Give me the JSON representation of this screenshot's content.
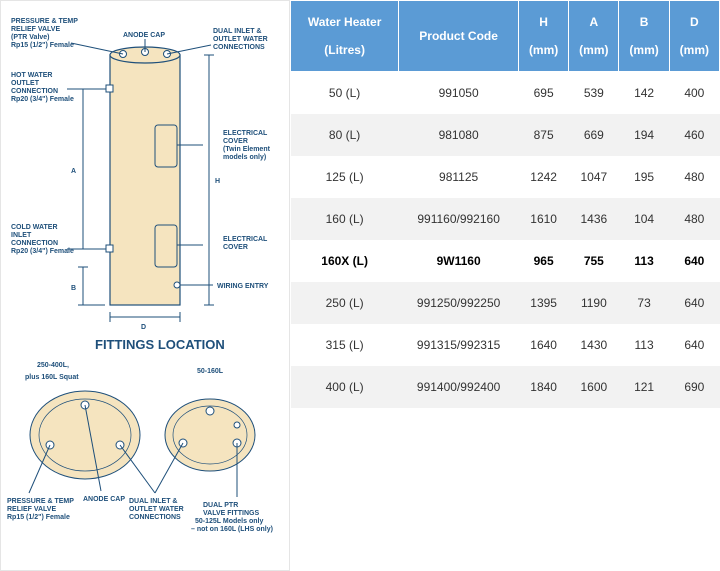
{
  "diagram": {
    "title": "FITTINGS LOCATION",
    "tank": {
      "fill_color": "#f5e4bf",
      "stroke_color": "#1e4f7a",
      "dim_labels": {
        "H": "H",
        "A": "A",
        "B": "B",
        "D": "D"
      },
      "annotations": {
        "ptr": {
          "l1": "PRESSURE & TEMP",
          "l2": "RELIEF VALVE",
          "l3": "(PTR Valve)",
          "l4": "Rp15 (1/2\") Female"
        },
        "hot": {
          "l1": "HOT WATER",
          "l2": "OUTLET",
          "l3": "CONNECTION",
          "l4": "Rp20 (3/4\") Female"
        },
        "cold": {
          "l1": "COLD WATER",
          "l2": "INLET",
          "l3": "CONNECTION",
          "l4": "Rp20 (3/4\") Female"
        },
        "anode": {
          "l1": "ANODE CAP"
        },
        "dual": {
          "l1": "DUAL INLET &",
          "l2": "OUTLET WATER",
          "l3": "CONNECTIONS"
        },
        "ecover1": {
          "l1": "ELECTRICAL",
          "l2": "COVER",
          "l3": "(Twin Element",
          "l4": "models only)"
        },
        "ecover2": {
          "l1": "ELECTRICAL",
          "l2": "COVER"
        },
        "wiring": {
          "l1": "WIRING ENTRY"
        }
      }
    },
    "top_views": {
      "left_label": "250-400L,\nplus 160L Squat",
      "right_label": "50-160L",
      "ann_ptr": {
        "l1": "PRESSURE & TEMP",
        "l2": "RELIEF VALVE",
        "l3": "Rp15 (1/2\") Female"
      },
      "ann_anode": {
        "l1": "ANODE CAP"
      },
      "ann_dual": {
        "l1": "DUAL INLET &",
        "l2": "OUTLET WATER",
        "l3": "CONNECTIONS"
      },
      "ann_dptr": {
        "l1": "DUAL PTR",
        "l2": "VALVE FITTINGS",
        "l3": "50-125L Models only",
        "l4": "– not on 160L (LHS only)"
      }
    }
  },
  "table": {
    "headers": {
      "c0a": "Water Heater",
      "c0b": "(Litres)",
      "c1": "Product Code",
      "c2a": "H",
      "c2b": "(mm)",
      "c3a": "A",
      "c3b": "(mm)",
      "c4a": "B",
      "c4b": "(mm)",
      "c5a": "D",
      "c5b": "(mm)"
    },
    "header_bg": "#5b9bd5",
    "rows": [
      {
        "wh": "50 (L)",
        "pc": "991050",
        "h": "695",
        "a": "539",
        "b": "142",
        "d": "400",
        "hl": false
      },
      {
        "wh": "80 (L)",
        "pc": "981080",
        "h": "875",
        "a": "669",
        "b": "194",
        "d": "460",
        "hl": false
      },
      {
        "wh": "125 (L)",
        "pc": "981125",
        "h": "1242",
        "a": "1047",
        "b": "195",
        "d": "480",
        "hl": false
      },
      {
        "wh": "160 (L)",
        "pc": "991160/992160",
        "h": "1610",
        "a": "1436",
        "b": "104",
        "d": "480",
        "hl": false
      },
      {
        "wh": "160X (L)",
        "pc": "9W1160",
        "h": "965",
        "a": "755",
        "b": "113",
        "d": "640",
        "hl": true
      },
      {
        "wh": "250 (L)",
        "pc": "991250/992250",
        "h": "1395",
        "a": "1190",
        "b": "73",
        "d": "640",
        "hl": false
      },
      {
        "wh": "315 (L)",
        "pc": "991315/992315",
        "h": "1640",
        "a": "1430",
        "b": "113",
        "d": "640",
        "hl": false
      },
      {
        "wh": "400 (L)",
        "pc": "991400/992400",
        "h": "1840",
        "a": "1600",
        "b": "121",
        "d": "690",
        "hl": false
      }
    ]
  }
}
